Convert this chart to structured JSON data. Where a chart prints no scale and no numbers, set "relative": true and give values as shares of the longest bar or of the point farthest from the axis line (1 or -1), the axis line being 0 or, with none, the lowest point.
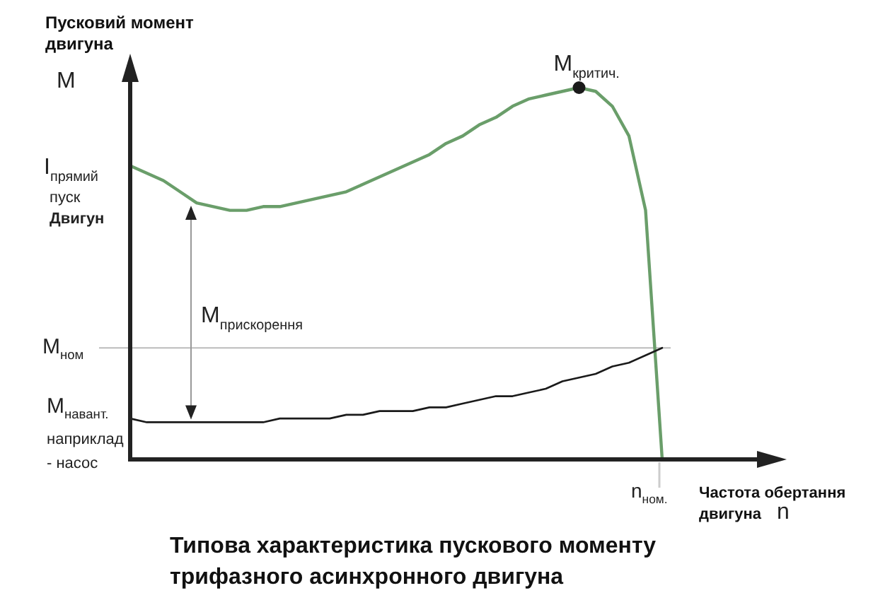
{
  "chart_data": {
    "type": "line",
    "relative": true,
    "title": "Типова характеристика пускового моменту трифазного асинхронного двигуна",
    "ylabel": "Пусковий момент двигуна",
    "xlabel": "Частота обертання двигуна",
    "categories": [
      null,
      null,
      null,
      null,
      null,
      null,
      null,
      null,
      null,
      null,
      null,
      null,
      null,
      null,
      null,
      null,
      null,
      null,
      null,
      null,
      null,
      null,
      null,
      null,
      null,
      null,
      null,
      null,
      null,
      null,
      null,
      null,
      null
    ],
    "series": [
      {
        "color": "#6a9e6a",
        "values": [
          0.79,
          0.77,
          0.75,
          0.72,
          0.69,
          0.68,
          0.67,
          0.67,
          0.68,
          0.68,
          0.69,
          0.7,
          0.71,
          0.72,
          0.74,
          0.76,
          0.78,
          0.8,
          0.82,
          0.85,
          0.87,
          0.9,
          0.92,
          0.95,
          0.97,
          0.98,
          0.99,
          1,
          0.99,
          0.95,
          0.87,
          0.67,
          0
        ]
      },
      {
        "color": "#1a1a1a",
        "values": [
          0.11,
          0.1,
          0.1,
          0.1,
          0.1,
          0.1,
          0.1,
          0.1,
          0.1,
          0.11,
          0.11,
          0.11,
          0.11,
          0.12,
          0.12,
          0.13,
          0.13,
          0.13,
          0.14,
          0.14,
          0.15,
          0.16,
          0.17,
          0.17,
          0.18,
          0.19,
          0.21,
          0.22,
          0.23,
          0.25,
          0.26,
          0.28,
          0.3
        ]
      }
    ],
    "ref_lines": [
      {
        "axis": "y",
        "value": 0.3,
        "label": "M$_{ном}$",
        "color": "#bbbbbb"
      }
    ],
    "annotations": [
      "M",
      "n",
      "I$_{прямий}$",
      "пуск",
      "Двигун",
      "M$_{прискорення}$",
      "M$_{критич.}$",
      "n$_{ном.}$",
      "M$_{навант.}$",
      "наприклад",
      "- насос"
    ]
  }
}
